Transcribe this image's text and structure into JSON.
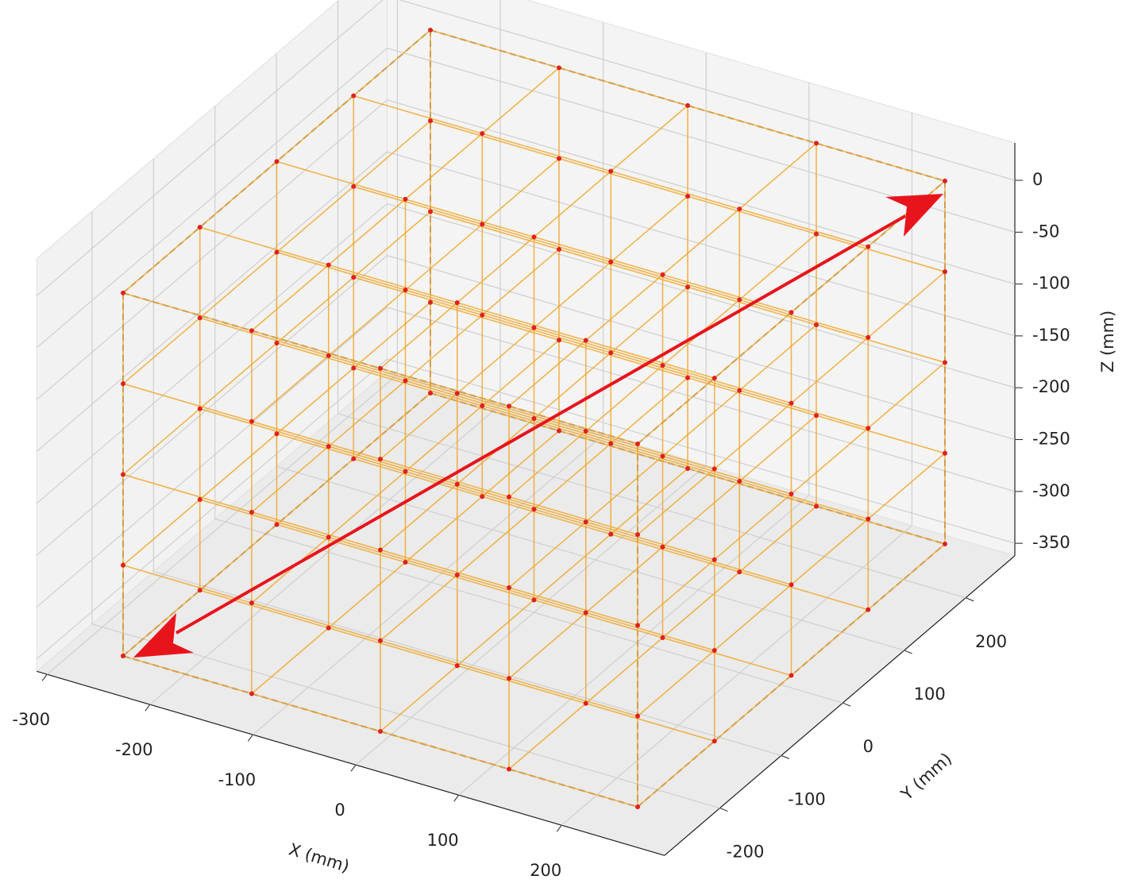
{
  "chart_data": {
    "type": "scatter3d",
    "xlabel": "X (mm)",
    "ylabel": "Y (mm)",
    "zlabel": "Z (mm)",
    "xlim": [
      -310,
      300
    ],
    "ylim": [
      -290,
      280
    ],
    "zlim": [
      -362,
      36
    ],
    "xticks": [
      -300,
      -200,
      -100,
      0,
      100,
      200
    ],
    "yticks": [
      -200,
      -100,
      0,
      100,
      200
    ],
    "zticks": [
      0,
      -50,
      -100,
      -150,
      -200,
      -250,
      -300,
      -350
    ],
    "grid": true,
    "series": [
      {
        "color": "#f0a830",
        "marker_color": "#e02020",
        "x": [
          -250,
          -250,
          -250,
          -250,
          -250,
          -250,
          -250,
          -250,
          -250,
          -250,
          -250,
          -250,
          -250,
          -250,
          -250,
          -250,
          -250,
          -250,
          -250,
          -250,
          -250,
          -250,
          -250,
          -250,
          -250,
          -125,
          -125,
          -125,
          -125,
          -125,
          -125,
          -125,
          -125,
          -125,
          -125,
          -125,
          -125,
          -125,
          -125,
          -125,
          -125,
          -125,
          -125,
          -125,
          -125,
          -125,
          -125,
          -125,
          -125,
          -125,
          0,
          0,
          0,
          0,
          0,
          0,
          0,
          0,
          0,
          0,
          0,
          0,
          0,
          0,
          0,
          0,
          0,
          0,
          0,
          0,
          0,
          0,
          0,
          0,
          0,
          125,
          125,
          125,
          125,
          125,
          125,
          125,
          125,
          125,
          125,
          125,
          125,
          125,
          125,
          125,
          125,
          125,
          125,
          125,
          125,
          125,
          125,
          125,
          125,
          125,
          250,
          250,
          250,
          250,
          250,
          250,
          250,
          250,
          250,
          250,
          250,
          250,
          250,
          250,
          250,
          250,
          250,
          250,
          250,
          250,
          250,
          250,
          250,
          250,
          250
        ],
        "y": [
          -250,
          -250,
          -250,
          -250,
          -250,
          -125,
          -125,
          -125,
          -125,
          -125,
          0,
          0,
          0,
          0,
          0,
          125,
          125,
          125,
          125,
          125,
          250,
          250,
          250,
          250,
          250,
          -250,
          -250,
          -250,
          -250,
          -250,
          -125,
          -125,
          -125,
          -125,
          -125,
          0,
          0,
          0,
          0,
          0,
          125,
          125,
          125,
          125,
          125,
          250,
          250,
          250,
          250,
          250,
          -250,
          -250,
          -250,
          -250,
          -250,
          -125,
          -125,
          -125,
          -125,
          -125,
          0,
          0,
          0,
          0,
          0,
          125,
          125,
          125,
          125,
          125,
          250,
          250,
          250,
          250,
          250,
          -250,
          -250,
          -250,
          -250,
          -250,
          -125,
          -125,
          -125,
          -125,
          -125,
          0,
          0,
          0,
          0,
          0,
          125,
          125,
          125,
          125,
          125,
          250,
          250,
          250,
          250,
          250,
          -250,
          -250,
          -250,
          -250,
          -250,
          -125,
          -125,
          -125,
          -125,
          -125,
          0,
          0,
          0,
          0,
          0,
          125,
          125,
          125,
          125,
          125,
          250,
          250,
          250,
          250,
          250
        ],
        "z": [
          0,
          -87.5,
          -175,
          -262.5,
          -350,
          0,
          -87.5,
          -175,
          -262.5,
          -350,
          0,
          -87.5,
          -175,
          -262.5,
          -350,
          0,
          -87.5,
          -175,
          -262.5,
          -350,
          0,
          -87.5,
          -175,
          -262.5,
          -350,
          0,
          -87.5,
          -175,
          -262.5,
          -350,
          0,
          -87.5,
          -175,
          -262.5,
          -350,
          0,
          -87.5,
          -175,
          -262.5,
          -350,
          0,
          -87.5,
          -175,
          -262.5,
          -350,
          0,
          -87.5,
          -175,
          -262.5,
          -350,
          0,
          -87.5,
          -175,
          -262.5,
          -350,
          0,
          -87.5,
          -175,
          -262.5,
          -350,
          0,
          -87.5,
          -175,
          -262.5,
          -350,
          0,
          -87.5,
          -175,
          -262.5,
          -350,
          0,
          -87.5,
          -175,
          -262.5,
          -350,
          0,
          -87.5,
          -175,
          -262.5,
          -350,
          0,
          -87.5,
          -175,
          -262.5,
          -350,
          0,
          -87.5,
          -175,
          -262.5,
          -350,
          0,
          -87.5,
          -175,
          -262.5,
          -350,
          0,
          -87.5,
          -175,
          -262.5,
          -350,
          0,
          -87.5,
          -175,
          -262.5,
          -350,
          0,
          -87.5,
          -175,
          -262.5,
          -350,
          0,
          -87.5,
          -175,
          -262.5,
          -350,
          0,
          -87.5,
          -175,
          -262.5,
          -350,
          0,
          -87.5,
          -175,
          -262.5,
          -350
        ]
      }
    ],
    "reference_box": {
      "color": "#888888",
      "x": [
        -250,
        250,
        -250,
        250,
        -250,
        250,
        -250,
        250
      ],
      "y": [
        -250,
        -250,
        250,
        250,
        -250,
        -250,
        250,
        250
      ],
      "z": [
        0,
        0,
        0,
        0,
        -350,
        -350,
        -350,
        -350
      ]
    }
  }
}
